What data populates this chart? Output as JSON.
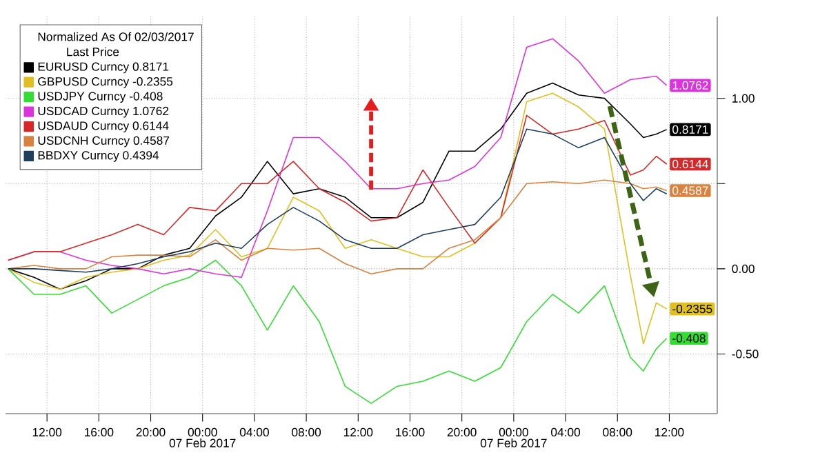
{
  "chart_data": {
    "type": "line",
    "legend_title": "Normalized As Of 02/03/2017",
    "annotations": [
      "Last Price",
      "07 Feb 2017",
      "07 Feb 2017"
    ],
    "x": [
      "2017-02-06T09:00",
      "2017-02-06T11:00",
      "2017-02-06T13:00",
      "2017-02-06T15:00",
      "2017-02-06T17:00",
      "2017-02-06T19:00",
      "2017-02-06T21:00",
      "2017-02-06T23:00",
      "2017-02-07T01:00",
      "2017-02-07T03:00",
      "2017-02-07T05:00",
      "2017-02-07T07:00",
      "2017-02-07T09:00",
      "2017-02-07T11:00",
      "2017-02-07T13:00",
      "2017-02-07T15:00",
      "2017-02-07T17:00",
      "2017-02-07T19:00",
      "2017-02-07T21:00",
      "2017-02-07T23:00",
      "2017-02-08T01:00",
      "2017-02-08T03:00",
      "2017-02-08T05:00",
      "2017-02-08T07:00",
      "2017-02-08T09:00",
      "2017-02-08T10:00",
      "2017-02-08T11:00",
      "2017-02-08T11:48"
    ],
    "xlim": [
      "2017-02-06T08:48",
      "2017-02-08T15:42"
    ],
    "ylim": [
      -0.85,
      1.48
    ],
    "xticks": [
      {
        "value": "2017-02-06T12:00",
        "label": "12:00"
      },
      {
        "value": "2017-02-06T16:00",
        "label": "16:00"
      },
      {
        "value": "2017-02-06T20:00",
        "label": "20:00"
      },
      {
        "value": "2017-02-07T00:00",
        "label": "00:00"
      },
      {
        "value": "2017-02-07T04:00",
        "label": "04:00"
      },
      {
        "value": "2017-02-07T08:00",
        "label": "08:00"
      },
      {
        "value": "2017-02-07T12:00",
        "label": "12:00"
      },
      {
        "value": "2017-02-07T16:00",
        "label": "16:00"
      },
      {
        "value": "2017-02-07T20:00",
        "label": "20:00"
      },
      {
        "value": "2017-02-08T00:00",
        "label": "00:00"
      },
      {
        "value": "2017-02-08T04:00",
        "label": "04:00"
      },
      {
        "value": "2017-02-08T08:00",
        "label": "08:00"
      },
      {
        "value": "2017-02-08T12:00",
        "label": "12:00"
      }
    ],
    "yticks": [
      {
        "value": 1,
        "label": "1.00"
      },
      {
        "value": 0.5,
        "label": null
      },
      {
        "value": 0,
        "label": "0.00"
      },
      {
        "value": -0.5,
        "label": "-0.50"
      }
    ],
    "grid": true,
    "legend": "top left",
    "marker": "none",
    "line_style": "solid",
    "series": [
      {
        "name": "EURUSD Curncy 0.8171",
        "color": "#000000",
        "values": [
          0,
          -0.05,
          -0.12,
          -0.07,
          0,
          0,
          0.08,
          0.12,
          0.31,
          0.42,
          0.63,
          0.44,
          0.47,
          0.42,
          0.3,
          0.3,
          0.39,
          0.69,
          0.69,
          0.82,
          1.03,
          1.09,
          1.02,
          1.0,
          0.85,
          0.77,
          0.79,
          0.8171
        ],
        "value_labels": [
          null,
          null,
          null,
          null,
          null,
          null,
          null,
          null,
          null,
          null,
          null,
          null,
          null,
          null,
          null,
          null,
          null,
          null,
          null,
          null,
          null,
          null,
          null,
          null,
          null,
          null,
          null,
          "0.8171"
        ]
      },
      {
        "name": "GBPUSD Curncy -0.2355",
        "color": "#e0c020",
        "values": [
          0,
          -0.08,
          -0.12,
          -0.05,
          -0.02,
          0,
          0.05,
          0.08,
          0.23,
          0.07,
          0.12,
          0.42,
          0.34,
          0.12,
          0.17,
          0.12,
          0.07,
          0.07,
          0.15,
          0.3,
          0.98,
          1.03,
          0.95,
          0.82,
          -0.04,
          -0.44,
          -0.2,
          -0.2355
        ],
        "value_labels": [
          null,
          null,
          null,
          null,
          null,
          null,
          null,
          null,
          null,
          null,
          null,
          null,
          null,
          null,
          null,
          null,
          null,
          null,
          null,
          null,
          null,
          null,
          null,
          null,
          null,
          null,
          null,
          "-0.2355"
        ]
      },
      {
        "name": "USDJPY Curncy -0.408",
        "color": "#33dd33",
        "values": [
          0,
          -0.15,
          -0.15,
          -0.1,
          -0.26,
          -0.18,
          -0.1,
          -0.05,
          0.05,
          -0.1,
          -0.36,
          -0.1,
          -0.31,
          -0.69,
          -0.79,
          -0.69,
          -0.66,
          -0.6,
          -0.66,
          -0.58,
          -0.31,
          -0.15,
          -0.26,
          -0.1,
          -0.52,
          -0.6,
          -0.47,
          -0.408
        ],
        "value_labels": [
          null,
          null,
          null,
          null,
          null,
          null,
          null,
          null,
          null,
          null,
          null,
          null,
          null,
          null,
          null,
          null,
          null,
          null,
          null,
          null,
          null,
          null,
          null,
          null,
          null,
          null,
          null,
          "-0.408"
        ]
      },
      {
        "name": "USDCAD Curncy 1.0762",
        "color": "#dd33dd",
        "values": [
          0.05,
          0.1,
          0.1,
          0.05,
          0.02,
          0,
          -0.03,
          0,
          -0.03,
          -0.05,
          0.34,
          0.77,
          0.77,
          0.63,
          0.47,
          0.47,
          0.5,
          0.52,
          0.6,
          0.77,
          1.3,
          1.35,
          1.22,
          1.03,
          1.11,
          1.12,
          1.13,
          1.0762
        ],
        "value_labels": [
          null,
          null,
          null,
          null,
          null,
          null,
          null,
          null,
          null,
          null,
          null,
          null,
          null,
          null,
          null,
          null,
          null,
          null,
          null,
          null,
          null,
          null,
          null,
          null,
          null,
          null,
          null,
          "1.0762"
        ]
      },
      {
        "name": "USDAUD Curncy 0.6144",
        "color": "#d62828",
        "values": [
          0.05,
          0.1,
          0.1,
          0.15,
          0.2,
          0.26,
          0.2,
          0.36,
          0.34,
          0.5,
          0.5,
          0.63,
          0.47,
          0.39,
          0.28,
          0.3,
          0.58,
          0.36,
          0.15,
          0.3,
          0.9,
          0.79,
          0.82,
          0.87,
          0.55,
          0.58,
          0.66,
          0.6144
        ],
        "value_labels": [
          null,
          null,
          null,
          null,
          null,
          null,
          null,
          null,
          null,
          null,
          null,
          null,
          null,
          null,
          null,
          null,
          null,
          null,
          null,
          null,
          null,
          null,
          null,
          null,
          null,
          null,
          null,
          "0.6144"
        ]
      },
      {
        "name": "USDCNH Curncy 0.4587",
        "color": "#d9823f",
        "values": [
          0,
          0.02,
          0,
          0,
          0.07,
          0.08,
          0.08,
          0.07,
          0.17,
          0.05,
          0.12,
          0.11,
          0.12,
          0.03,
          -0.03,
          0,
          0,
          0.12,
          0.17,
          0.3,
          0.5,
          0.51,
          0.5,
          0.52,
          0.5,
          0.47,
          0.48,
          0.4587
        ],
        "value_labels": [
          null,
          null,
          null,
          null,
          null,
          null,
          null,
          null,
          null,
          null,
          null,
          null,
          null,
          null,
          null,
          null,
          null,
          null,
          null,
          null,
          null,
          null,
          null,
          null,
          null,
          null,
          null,
          "0.4587"
        ]
      },
      {
        "name": "BBDXY Curncy 0.4394",
        "color": "#1f3d5c",
        "values": [
          0,
          0,
          -0.01,
          -0.02,
          0,
          0.03,
          0.07,
          0.1,
          0.15,
          0.12,
          0.26,
          0.36,
          0.28,
          0.17,
          0.12,
          0.12,
          0.2,
          0.23,
          0.26,
          0.42,
          0.82,
          0.79,
          0.71,
          0.77,
          0.5,
          0.4,
          0.47,
          0.4394
        ]
      }
    ]
  }
}
